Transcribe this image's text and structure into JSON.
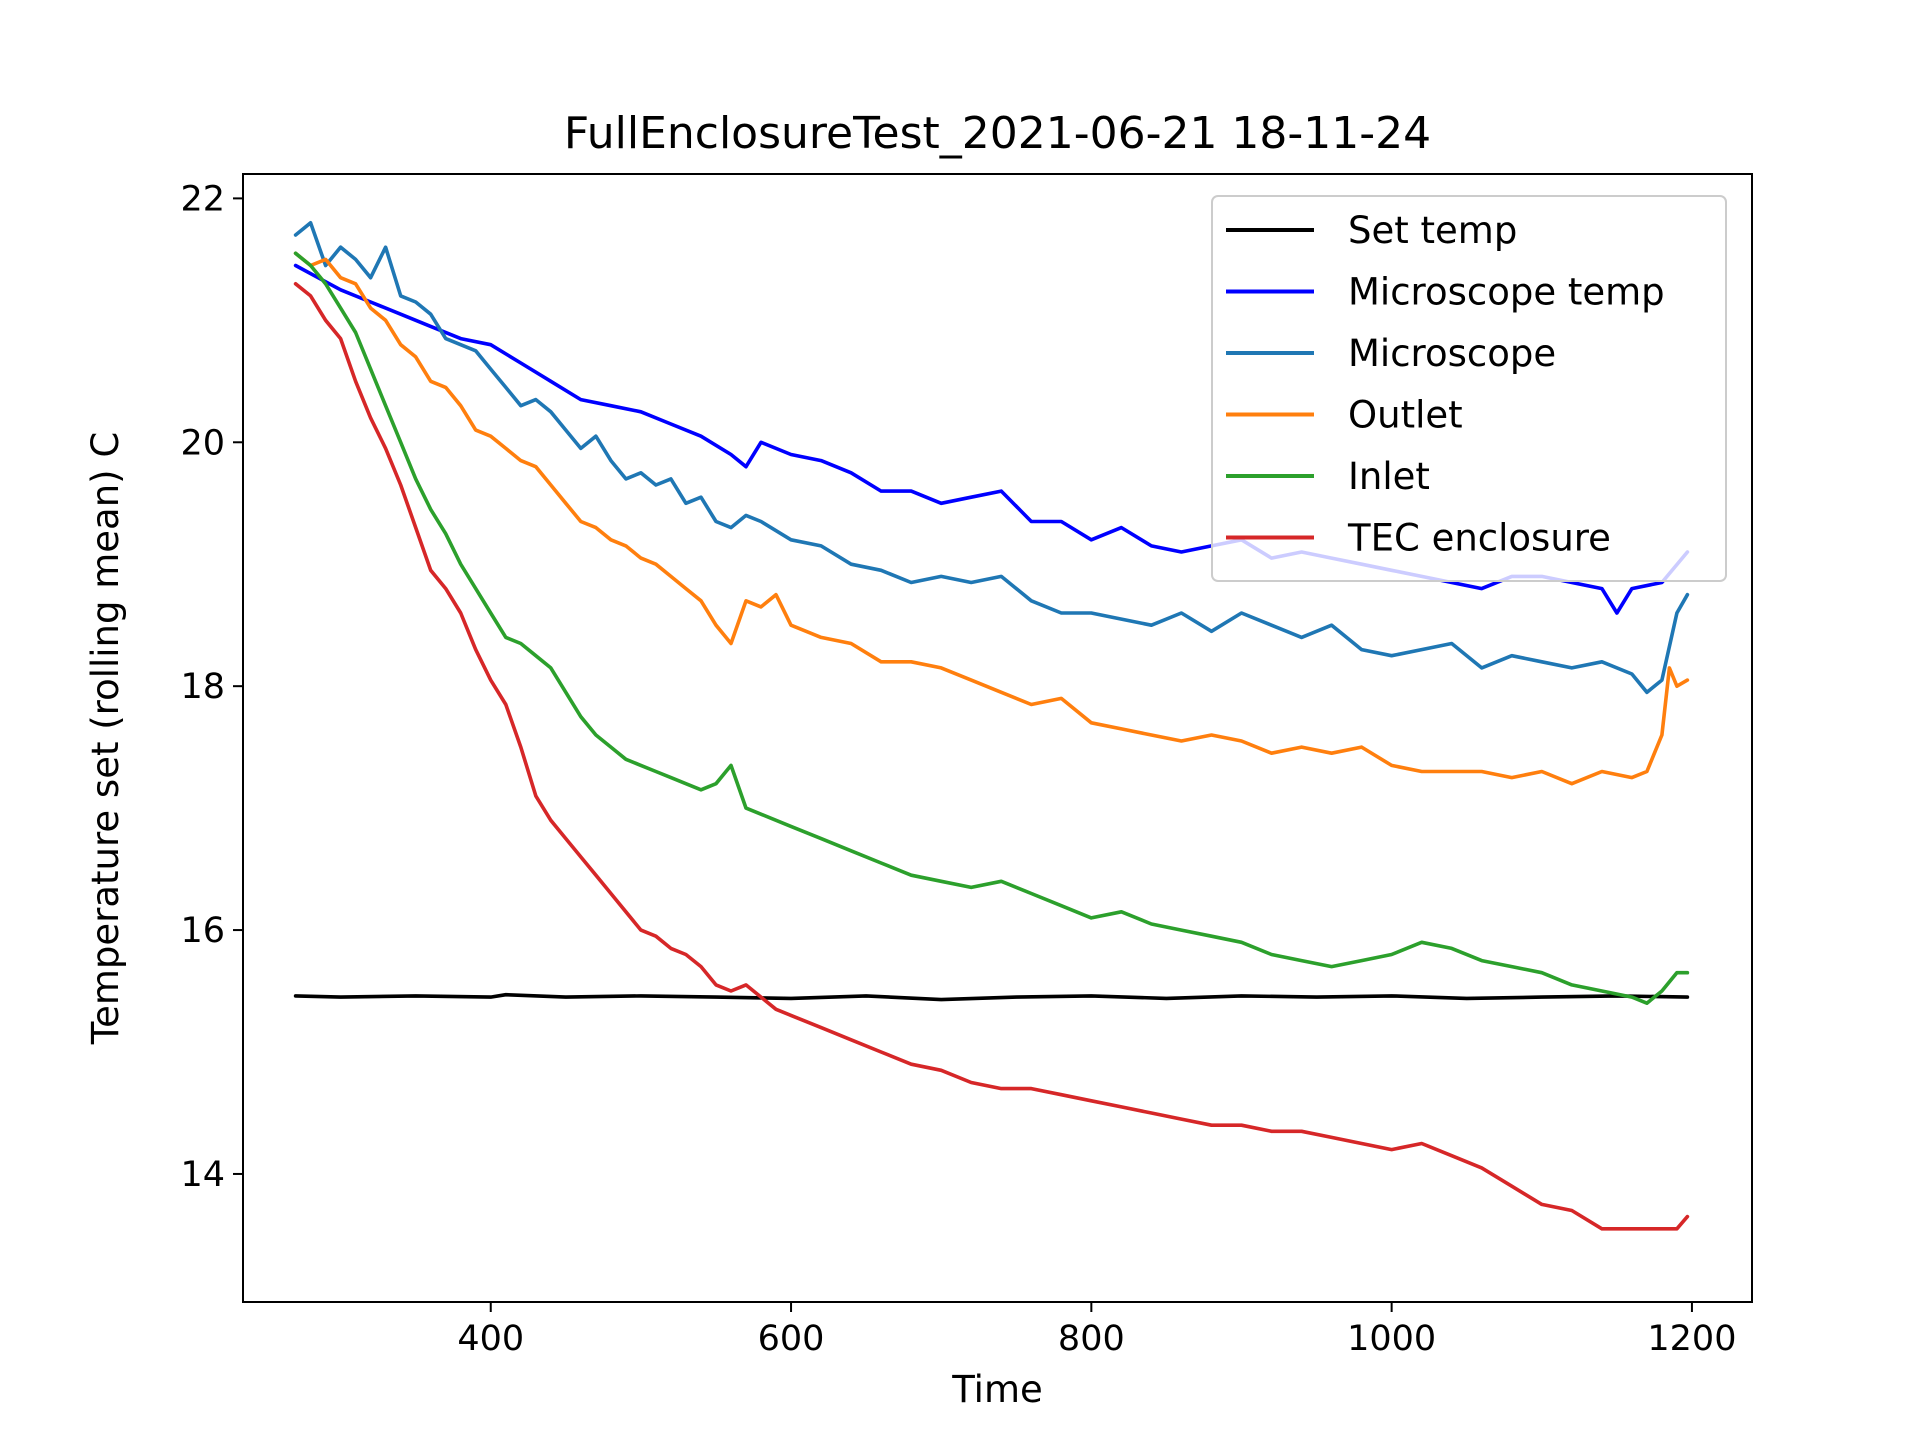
{
  "chart_data": {
    "type": "line",
    "title": "FullEnclosureTest_2021-06-21 18-11-24",
    "xlabel": "Time",
    "ylabel": "Temperature set (rolling mean) C",
    "xlim": [
      235,
      1240
    ],
    "ylim": [
      12.95,
      22.2
    ],
    "xticks": [
      400,
      600,
      800,
      1000,
      1200
    ],
    "yticks": [
      14,
      16,
      18,
      20,
      22
    ],
    "grid": false,
    "legend_position": "top-right",
    "series": [
      {
        "name": "Set temp",
        "color": "#000000",
        "x": [
          270,
          300,
          350,
          400,
          410,
          450,
          500,
          550,
          600,
          650,
          700,
          750,
          800,
          850,
          900,
          950,
          1000,
          1050,
          1100,
          1150,
          1197
        ],
        "y": [
          15.46,
          15.45,
          15.46,
          15.45,
          15.47,
          15.45,
          15.46,
          15.45,
          15.44,
          15.46,
          15.43,
          15.45,
          15.46,
          15.44,
          15.46,
          15.45,
          15.46,
          15.44,
          15.45,
          15.46,
          15.45
        ]
      },
      {
        "name": "Microscope temp",
        "color": "#0000ff",
        "x": [
          270,
          285,
          300,
          320,
          340,
          360,
          380,
          400,
          420,
          440,
          460,
          480,
          500,
          520,
          540,
          560,
          570,
          580,
          600,
          620,
          640,
          660,
          680,
          700,
          720,
          740,
          760,
          780,
          800,
          820,
          840,
          860,
          880,
          900,
          920,
          940,
          960,
          980,
          1000,
          1020,
          1040,
          1060,
          1080,
          1100,
          1120,
          1140,
          1150,
          1160,
          1180,
          1197
        ],
        "y": [
          21.45,
          21.35,
          21.25,
          21.15,
          21.05,
          20.95,
          20.85,
          20.8,
          20.65,
          20.5,
          20.35,
          20.3,
          20.25,
          20.15,
          20.05,
          19.9,
          19.8,
          20.0,
          19.9,
          19.85,
          19.75,
          19.6,
          19.6,
          19.5,
          19.55,
          19.6,
          19.35,
          19.35,
          19.2,
          19.3,
          19.15,
          19.1,
          19.15,
          19.2,
          19.05,
          19.1,
          19.05,
          19.0,
          18.95,
          18.9,
          18.85,
          18.8,
          18.9,
          18.9,
          18.85,
          18.8,
          18.6,
          18.8,
          18.85,
          19.1
        ]
      },
      {
        "name": "Microscope",
        "color": "#1f77b4",
        "x": [
          270,
          280,
          290,
          300,
          310,
          320,
          330,
          340,
          350,
          360,
          370,
          380,
          390,
          400,
          410,
          420,
          430,
          440,
          450,
          460,
          470,
          480,
          490,
          500,
          510,
          520,
          530,
          540,
          550,
          560,
          570,
          580,
          600,
          620,
          640,
          660,
          680,
          700,
          720,
          740,
          760,
          780,
          800,
          820,
          840,
          860,
          880,
          900,
          920,
          940,
          960,
          980,
          1000,
          1020,
          1040,
          1060,
          1080,
          1100,
          1120,
          1140,
          1160,
          1170,
          1180,
          1190,
          1197
        ],
        "y": [
          21.7,
          21.8,
          21.45,
          21.6,
          21.5,
          21.35,
          21.6,
          21.2,
          21.15,
          21.05,
          20.85,
          20.8,
          20.75,
          20.6,
          20.45,
          20.3,
          20.35,
          20.25,
          20.1,
          19.95,
          20.05,
          19.85,
          19.7,
          19.75,
          19.65,
          19.7,
          19.5,
          19.55,
          19.35,
          19.3,
          19.4,
          19.35,
          19.2,
          19.15,
          19.0,
          18.95,
          18.85,
          18.9,
          18.85,
          18.9,
          18.7,
          18.6,
          18.6,
          18.55,
          18.5,
          18.6,
          18.45,
          18.6,
          18.5,
          18.4,
          18.5,
          18.3,
          18.25,
          18.3,
          18.35,
          18.15,
          18.25,
          18.2,
          18.15,
          18.2,
          18.1,
          17.95,
          18.05,
          18.6,
          18.75
        ]
      },
      {
        "name": "Outlet",
        "color": "#ff7f0e",
        "x": [
          270,
          280,
          290,
          300,
          310,
          320,
          330,
          340,
          350,
          360,
          370,
          380,
          390,
          400,
          410,
          420,
          430,
          440,
          450,
          460,
          470,
          480,
          490,
          500,
          510,
          520,
          530,
          540,
          550,
          560,
          570,
          580,
          590,
          600,
          620,
          640,
          660,
          680,
          700,
          720,
          740,
          760,
          780,
          800,
          820,
          840,
          860,
          880,
          900,
          920,
          940,
          960,
          980,
          1000,
          1020,
          1040,
          1060,
          1080,
          1100,
          1120,
          1140,
          1160,
          1170,
          1180,
          1185,
          1190,
          1197
        ],
        "y": [
          21.55,
          21.45,
          21.5,
          21.35,
          21.3,
          21.1,
          21.0,
          20.8,
          20.7,
          20.5,
          20.45,
          20.3,
          20.1,
          20.05,
          19.95,
          19.85,
          19.8,
          19.65,
          19.5,
          19.35,
          19.3,
          19.2,
          19.15,
          19.05,
          19.0,
          18.9,
          18.8,
          18.7,
          18.5,
          18.35,
          18.7,
          18.65,
          18.75,
          18.5,
          18.4,
          18.35,
          18.2,
          18.2,
          18.15,
          18.05,
          17.95,
          17.85,
          17.9,
          17.7,
          17.65,
          17.6,
          17.55,
          17.6,
          17.55,
          17.45,
          17.5,
          17.45,
          17.5,
          17.35,
          17.3,
          17.3,
          17.3,
          17.25,
          17.3,
          17.2,
          17.3,
          17.25,
          17.3,
          17.6,
          18.15,
          18.0,
          18.05
        ]
      },
      {
        "name": "Inlet",
        "color": "#2ca02c",
        "x": [
          270,
          280,
          290,
          300,
          310,
          320,
          330,
          340,
          350,
          360,
          370,
          380,
          390,
          400,
          410,
          420,
          430,
          440,
          450,
          460,
          470,
          480,
          490,
          500,
          510,
          520,
          530,
          540,
          550,
          560,
          570,
          580,
          600,
          620,
          640,
          660,
          680,
          700,
          720,
          740,
          760,
          780,
          800,
          820,
          840,
          860,
          880,
          900,
          920,
          940,
          960,
          980,
          1000,
          1020,
          1040,
          1060,
          1080,
          1100,
          1120,
          1140,
          1160,
          1170,
          1180,
          1190,
          1197
        ],
        "y": [
          21.55,
          21.45,
          21.3,
          21.1,
          20.9,
          20.6,
          20.3,
          20.0,
          19.7,
          19.45,
          19.25,
          19.0,
          18.8,
          18.6,
          18.4,
          18.35,
          18.25,
          18.15,
          17.95,
          17.75,
          17.6,
          17.5,
          17.4,
          17.35,
          17.3,
          17.25,
          17.2,
          17.15,
          17.2,
          17.35,
          17.0,
          16.95,
          16.85,
          16.75,
          16.65,
          16.55,
          16.45,
          16.4,
          16.35,
          16.4,
          16.3,
          16.2,
          16.1,
          16.15,
          16.05,
          16.0,
          15.95,
          15.9,
          15.8,
          15.75,
          15.7,
          15.75,
          15.8,
          15.9,
          15.85,
          15.75,
          15.7,
          15.65,
          15.55,
          15.5,
          15.45,
          15.4,
          15.5,
          15.65,
          15.65
        ]
      },
      {
        "name": "TEC enclosure",
        "color": "#d62728",
        "x": [
          270,
          280,
          290,
          300,
          310,
          320,
          330,
          340,
          350,
          360,
          370,
          380,
          390,
          400,
          410,
          420,
          430,
          440,
          450,
          460,
          470,
          480,
          490,
          500,
          510,
          520,
          530,
          540,
          550,
          560,
          570,
          580,
          590,
          600,
          620,
          640,
          660,
          680,
          700,
          720,
          740,
          760,
          780,
          800,
          820,
          840,
          860,
          880,
          900,
          920,
          940,
          960,
          980,
          1000,
          1020,
          1040,
          1060,
          1080,
          1100,
          1120,
          1140,
          1160,
          1180,
          1190,
          1197
        ],
        "y": [
          21.3,
          21.2,
          21.0,
          20.85,
          20.5,
          20.2,
          19.95,
          19.65,
          19.3,
          18.95,
          18.8,
          18.6,
          18.3,
          18.05,
          17.85,
          17.5,
          17.1,
          16.9,
          16.75,
          16.6,
          16.45,
          16.3,
          16.15,
          16.0,
          15.95,
          15.85,
          15.8,
          15.7,
          15.55,
          15.5,
          15.55,
          15.45,
          15.35,
          15.3,
          15.2,
          15.1,
          15.0,
          14.9,
          14.85,
          14.75,
          14.7,
          14.7,
          14.65,
          14.6,
          14.55,
          14.5,
          14.45,
          14.4,
          14.4,
          14.35,
          14.35,
          14.3,
          14.25,
          14.2,
          14.25,
          14.15,
          14.05,
          13.9,
          13.75,
          13.7,
          13.55,
          13.55,
          13.55,
          13.55,
          13.65
        ]
      }
    ]
  }
}
